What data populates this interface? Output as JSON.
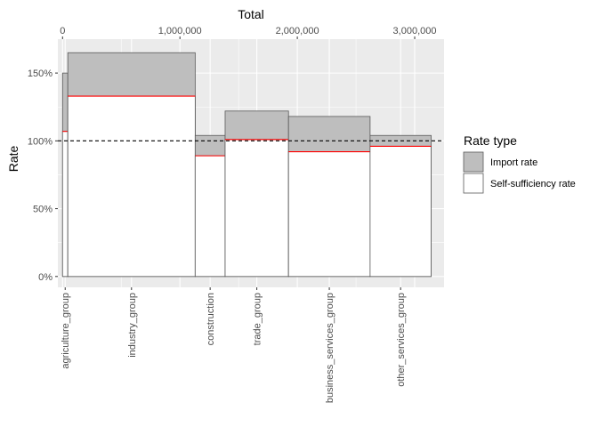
{
  "chart_data": {
    "type": "bar",
    "subtype": "variable-width mosaic (marimekko) with overlaid rate bars",
    "title": "",
    "x_top_label": "Total",
    "ylabel": "Rate",
    "xlim": [
      -40000,
      3250000
    ],
    "ylim": [
      -0.08,
      1.75
    ],
    "x_top_ticks": [
      {
        "value": 0,
        "label": "0"
      },
      {
        "value": 1000000,
        "label": "1,000,000"
      },
      {
        "value": 2000000,
        "label": "2,000,000"
      },
      {
        "value": 3000000,
        "label": "3,000,000"
      }
    ],
    "y_ticks": [
      {
        "value": 0,
        "label": "0%"
      },
      {
        "value": 0.5,
        "label": "50%"
      },
      {
        "value": 1.0,
        "label": "100%"
      },
      {
        "value": 1.5,
        "label": "150%"
      }
    ],
    "reference_line": {
      "y": 1.0,
      "style": "dashed"
    },
    "grid": true,
    "legend": {
      "title": "Rate type",
      "position": "right",
      "entries": [
        {
          "label": "Import rate",
          "fill": "#bebebe",
          "stroke": "#595959"
        },
        {
          "label": "Self-sufficiency rate",
          "fill": "#ffffff",
          "stroke": "#595959"
        }
      ]
    },
    "categories": [
      {
        "name": "agriculture_group",
        "x_start": 0,
        "x_end": 45000,
        "import_rate": 1.5,
        "self_sufficiency_rate": 1.07
      },
      {
        "name": "industry_group",
        "x_start": 45000,
        "x_end": 1130000,
        "import_rate": 1.65,
        "self_sufficiency_rate": 1.33
      },
      {
        "name": "construction",
        "x_start": 1130000,
        "x_end": 1385000,
        "import_rate": 1.04,
        "self_sufficiency_rate": 0.89
      },
      {
        "name": "trade_group",
        "x_start": 1385000,
        "x_end": 1925000,
        "import_rate": 1.22,
        "self_sufficiency_rate": 1.01
      },
      {
        "name": "business_services_group",
        "x_start": 1925000,
        "x_end": 2620000,
        "import_rate": 1.18,
        "self_sufficiency_rate": 0.92
      },
      {
        "name": "other_services_group",
        "x_start": 2620000,
        "x_end": 3140000,
        "import_rate": 1.04,
        "self_sufficiency_rate": 0.96
      }
    ],
    "colors": {
      "panel_background": "#ebebeb",
      "grid": "#ffffff",
      "import_fill": "#bebebe",
      "bar_outline": "#595959",
      "self_sufficiency_top_line": "#ff0000",
      "reference_line": "#000000"
    }
  }
}
